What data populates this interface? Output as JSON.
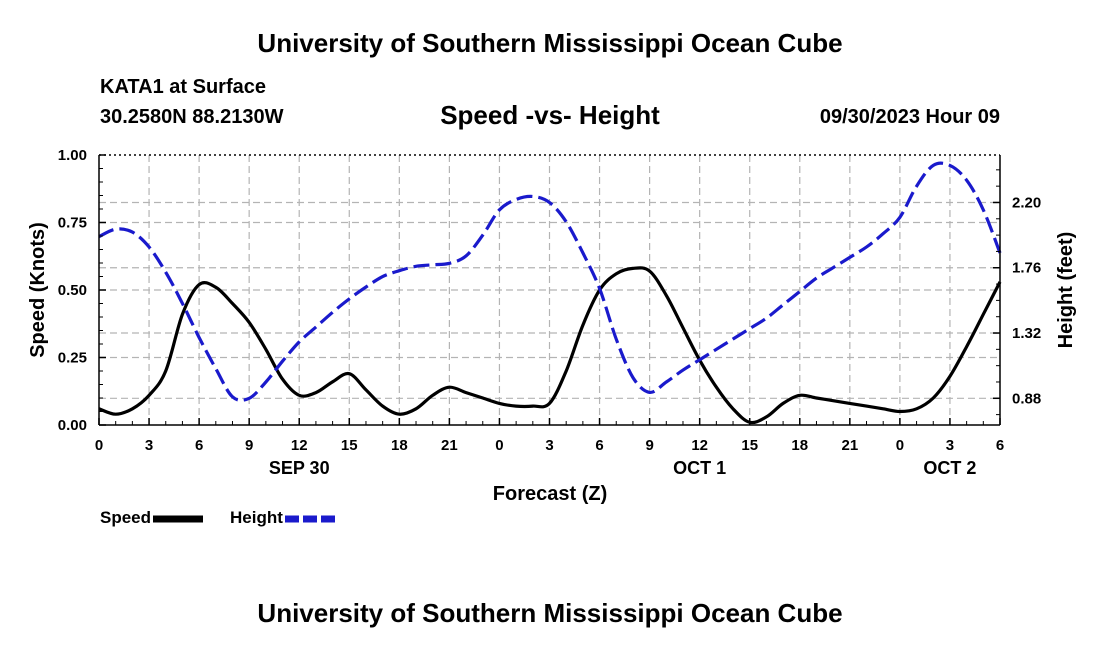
{
  "header": {
    "title": "University of Southern Mississippi Ocean Cube",
    "station": "KATA1 at Surface",
    "coords": "30.2580N  88.2130W",
    "subtitle": "Speed -vs- Height",
    "datetime": "09/30/2023 Hour 09"
  },
  "footer": {
    "title": "University of Southern Mississippi Ocean Cube"
  },
  "legend": {
    "speed_label": "Speed",
    "height_label": "Height"
  },
  "colors": {
    "speed": "#000000",
    "height": "#1a1acc",
    "grid": "#b4b4b4"
  },
  "chart_data": {
    "type": "line",
    "title": "Speed -vs- Height",
    "xlabel": "Forecast (Z)",
    "ylabel": "Speed (Knots)",
    "y2label": "Height (feet)",
    "xlim": [
      0,
      54
    ],
    "ylim": [
      0,
      1
    ],
    "y2lim": [
      0.7,
      2.52
    ],
    "x_ticks": [
      0,
      3,
      6,
      9,
      12,
      15,
      18,
      21,
      24,
      27,
      30,
      33,
      36,
      39,
      42,
      45,
      48,
      51,
      54
    ],
    "x_tick_labels": [
      "0",
      "3",
      "6",
      "9",
      "12",
      "15",
      "18",
      "21",
      "0",
      "3",
      "6",
      "9",
      "12",
      "15",
      "18",
      "21",
      "0",
      "3",
      "6"
    ],
    "date_labels": [
      {
        "x": 12,
        "label": "SEP 30"
      },
      {
        "x": 36,
        "label": "OCT 1"
      },
      {
        "x": 51,
        "label": "OCT 2"
      }
    ],
    "y_ticks": [
      0,
      0.25,
      0.5,
      0.75,
      1.0
    ],
    "y_tick_labels": [
      "0.00",
      "0.25",
      "0.50",
      "0.75",
      "1.00"
    ],
    "y2_ticks": [
      0.88,
      1.32,
      1.76,
      2.2
    ],
    "y2_tick_labels": [
      "0.88",
      "1.32",
      "1.76",
      "2.20"
    ],
    "series": [
      {
        "name": "Speed",
        "axis": "left",
        "style": "solid",
        "x": [
          0,
          1,
          2,
          3,
          4,
          5,
          6,
          7,
          8,
          9,
          10,
          11,
          12,
          13,
          14,
          15,
          16,
          17,
          18,
          19,
          20,
          21,
          22,
          23,
          24,
          25,
          26,
          27,
          28,
          29,
          30,
          31,
          32,
          33,
          34,
          35,
          36,
          37,
          38,
          39,
          40,
          41,
          42,
          43,
          44,
          45,
          46,
          47,
          48,
          49,
          50,
          51,
          52,
          53,
          54
        ],
        "values": [
          0.06,
          0.04,
          0.06,
          0.11,
          0.2,
          0.41,
          0.52,
          0.51,
          0.45,
          0.38,
          0.28,
          0.17,
          0.11,
          0.12,
          0.16,
          0.19,
          0.13,
          0.07,
          0.04,
          0.06,
          0.11,
          0.14,
          0.12,
          0.1,
          0.08,
          0.07,
          0.07,
          0.08,
          0.2,
          0.37,
          0.5,
          0.56,
          0.58,
          0.57,
          0.48,
          0.36,
          0.24,
          0.14,
          0.06,
          0.01,
          0.03,
          0.08,
          0.11,
          0.1,
          0.09,
          0.08,
          0.07,
          0.06,
          0.05,
          0.06,
          0.1,
          0.18,
          0.29,
          0.41,
          0.53
        ]
      },
      {
        "name": "Height",
        "axis": "right",
        "style": "dashed",
        "x": [
          0,
          1,
          2,
          3,
          4,
          5,
          6,
          7,
          8,
          9,
          10,
          11,
          12,
          13,
          14,
          15,
          16,
          17,
          18,
          19,
          20,
          21,
          22,
          23,
          24,
          25,
          26,
          27,
          28,
          29,
          30,
          31,
          32,
          33,
          34,
          35,
          36,
          37,
          38,
          39,
          40,
          41,
          42,
          43,
          44,
          45,
          46,
          47,
          48,
          49,
          50,
          51,
          52,
          53,
          54
        ],
        "values": [
          1.97,
          2.02,
          2.0,
          1.9,
          1.73,
          1.52,
          1.29,
          1.08,
          0.89,
          0.88,
          0.99,
          1.13,
          1.26,
          1.36,
          1.46,
          1.55,
          1.63,
          1.7,
          1.74,
          1.77,
          1.78,
          1.79,
          1.84,
          1.98,
          2.15,
          2.22,
          2.24,
          2.2,
          2.07,
          1.86,
          1.62,
          1.28,
          1.02,
          0.92,
          0.99,
          1.07,
          1.14,
          1.21,
          1.28,
          1.35,
          1.42,
          1.51,
          1.6,
          1.69,
          1.76,
          1.83,
          1.9,
          1.99,
          2.1,
          2.31,
          2.45,
          2.45,
          2.35,
          2.15,
          1.86
        ]
      }
    ]
  }
}
